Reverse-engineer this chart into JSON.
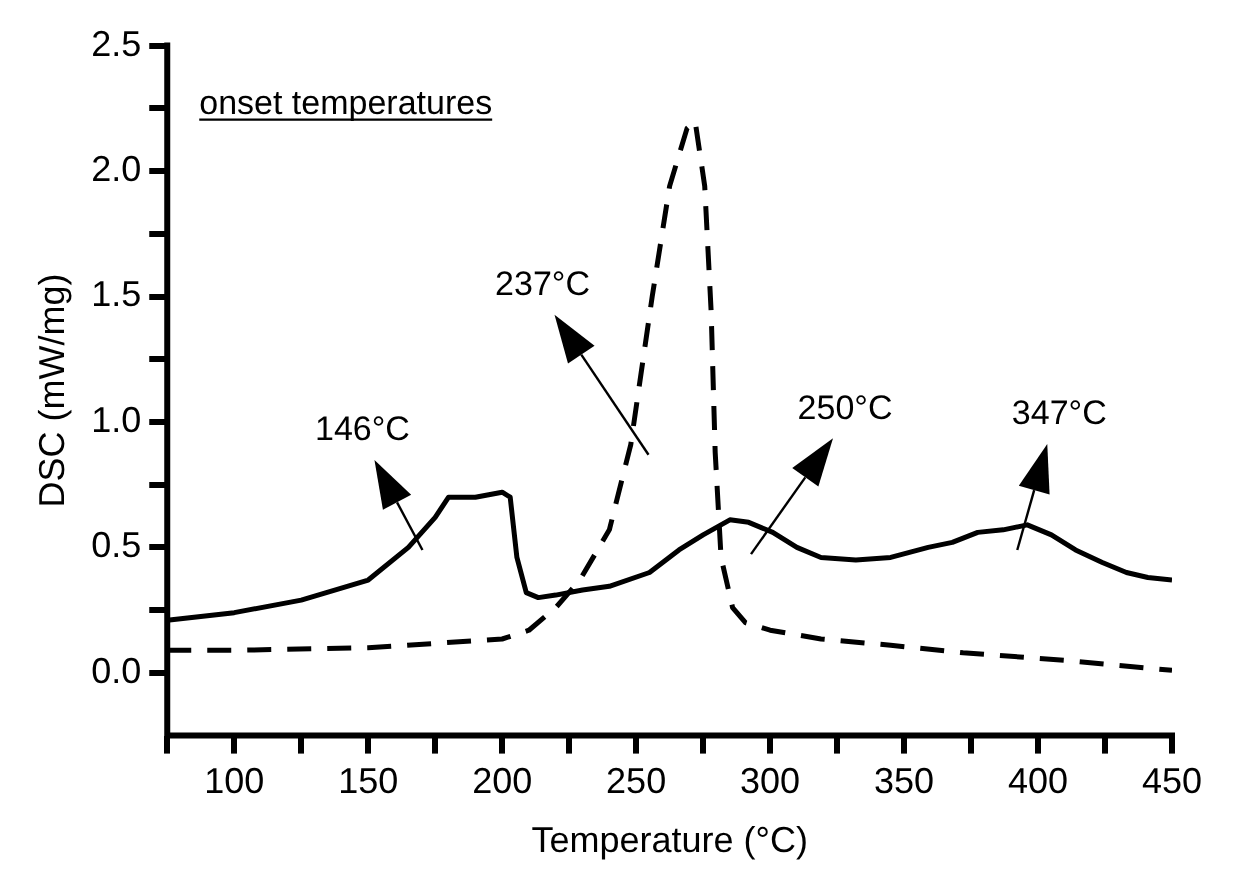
{
  "chart_data": {
    "type": "line",
    "xlabel": "Temperature (°C)",
    "ylabel": "DSC (mW/mg)",
    "xlim": [
      75,
      450
    ],
    "xticks": [
      {
        "value": 75,
        "label": null
      },
      100,
      {
        "value": 125,
        "label": null
      },
      150,
      {
        "value": 175,
        "label": null
      },
      200,
      {
        "value": 225,
        "label": null
      },
      250,
      {
        "value": 275,
        "label": null
      },
      300,
      {
        "value": 325,
        "label": null
      },
      350,
      {
        "value": 375,
        "label": null
      },
      400,
      {
        "value": 425,
        "label": null
      },
      450
    ],
    "ylim": [
      -0.25,
      2.5
    ],
    "yticks": [
      {
        "value": 0,
        "label": "0.0"
      },
      {
        "value": 0.25,
        "label": null
      },
      0.5,
      {
        "value": 0.75,
        "label": null
      },
      {
        "value": 1,
        "label": "1.0"
      },
      {
        "value": 1.25,
        "label": null
      },
      1.5,
      {
        "value": 1.75,
        "label": null
      },
      {
        "value": 2,
        "label": "2.0"
      },
      {
        "value": 2.25,
        "label": null
      },
      2.5
    ],
    "grid": false,
    "legend": false,
    "marker": "none",
    "series": [
      {
        "color": "#000000",
        "line_style": "solid",
        "x": [
          75,
          100,
          125,
          150,
          165,
          175,
          180,
          190,
          200,
          203,
          205.5,
          209,
          213.5,
          220,
          230,
          240,
          255,
          266,
          275,
          285,
          292,
          301,
          310,
          319,
          332,
          345,
          359,
          368,
          377.5,
          387,
          396,
          405,
          414,
          424,
          433,
          441,
          450
        ],
        "values": [
          0.21,
          0.24,
          0.29,
          0.37,
          0.5,
          0.62,
          0.7,
          0.7,
          0.72,
          0.7,
          0.46,
          0.32,
          0.3,
          0.31,
          0.33,
          0.345,
          0.4,
          0.49,
          0.55,
          0.61,
          0.6,
          0.56,
          0.5,
          0.46,
          0.45,
          0.46,
          0.5,
          0.52,
          0.56,
          0.57,
          0.59,
          0.55,
          0.49,
          0.44,
          0.4,
          0.38,
          0.37
        ]
      },
      {
        "color": "#000000",
        "line_style": "dashed",
        "x": [
          75,
          100,
          150,
          200,
          210,
          220,
          229,
          240,
          248,
          256,
          262.5,
          269,
          272,
          275.6,
          278,
          279.5,
          281.7,
          286,
          290.8,
          300,
          319,
          345,
          372,
          410,
          450
        ],
        "values": [
          0.09,
          0.09,
          0.1,
          0.135,
          0.17,
          0.26,
          0.37,
          0.57,
          0.91,
          1.5,
          1.94,
          2.17,
          2.2,
          1.94,
          1.44,
          0.88,
          0.46,
          0.26,
          0.2,
          0.17,
          0.135,
          0.11,
          0.08,
          0.05,
          0.01
        ]
      }
    ],
    "annotations": [
      "onset temperatures",
      "146°C",
      "237°C",
      "250°C",
      "347°C"
    ]
  }
}
